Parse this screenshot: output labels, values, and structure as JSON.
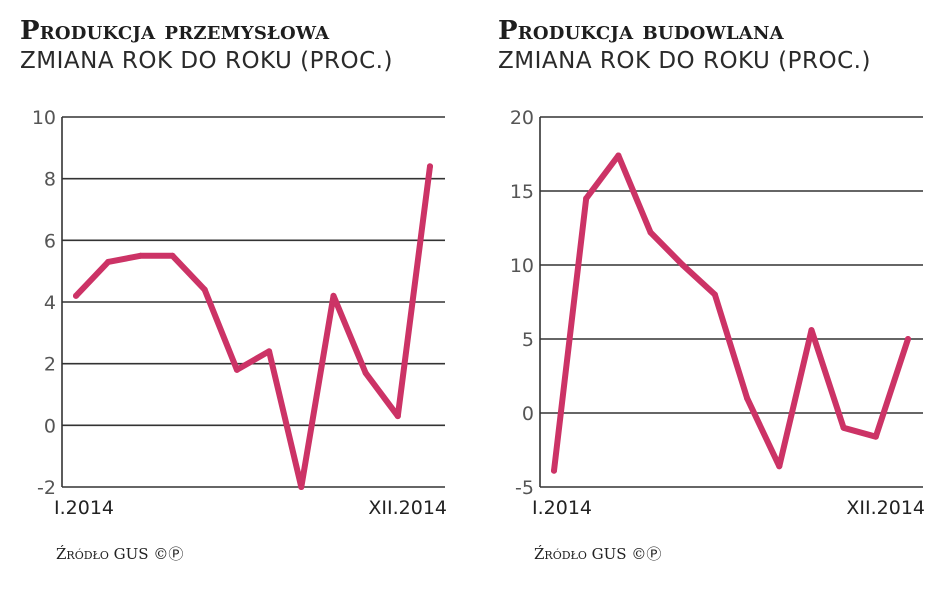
{
  "charts": [
    {
      "title": "Produkcja przemysłowa",
      "subtitle": "ZMIANA ROK DO ROKU (PROC.)",
      "source": "Źródło GUS ©Ⓟ",
      "color": "#cc3366",
      "chart_data": {
        "type": "line",
        "title": "Produkcja przemysłowa",
        "subtitle": "ZMIANA ROK DO ROKU (PROC.)",
        "xlabel": "",
        "ylabel": "",
        "x_tick_labels": [
          "I.2014",
          "XII.2014"
        ],
        "ylim": [
          -2,
          10
        ],
        "yticks": [
          -2,
          0,
          2,
          4,
          6,
          8,
          10
        ],
        "grid": true,
        "values": [
          4.2,
          5.3,
          5.5,
          5.5,
          4.4,
          1.8,
          2.4,
          -2.0,
          4.2,
          1.7,
          0.3,
          8.4
        ]
      }
    },
    {
      "title": "Produkcja budowlana",
      "subtitle": "ZMIANA ROK DO ROKU (PROC.)",
      "source": "Źródło GUS ©Ⓟ",
      "color": "#cc3366",
      "chart_data": {
        "type": "line",
        "title": "Produkcja budowlana",
        "subtitle": "ZMIANA ROK DO ROKU (PROC.)",
        "xlabel": "",
        "ylabel": "",
        "x_tick_labels": [
          "I.2014",
          "XII.2014"
        ],
        "ylim": [
          -5,
          20
        ],
        "yticks": [
          -5,
          0,
          5,
          10,
          15,
          20
        ],
        "grid": true,
        "values": [
          -3.9,
          14.5,
          17.4,
          12.2,
          10.0,
          8.0,
          1.0,
          -3.6,
          5.6,
          -1.0,
          -1.6,
          5.0
        ]
      }
    }
  ]
}
